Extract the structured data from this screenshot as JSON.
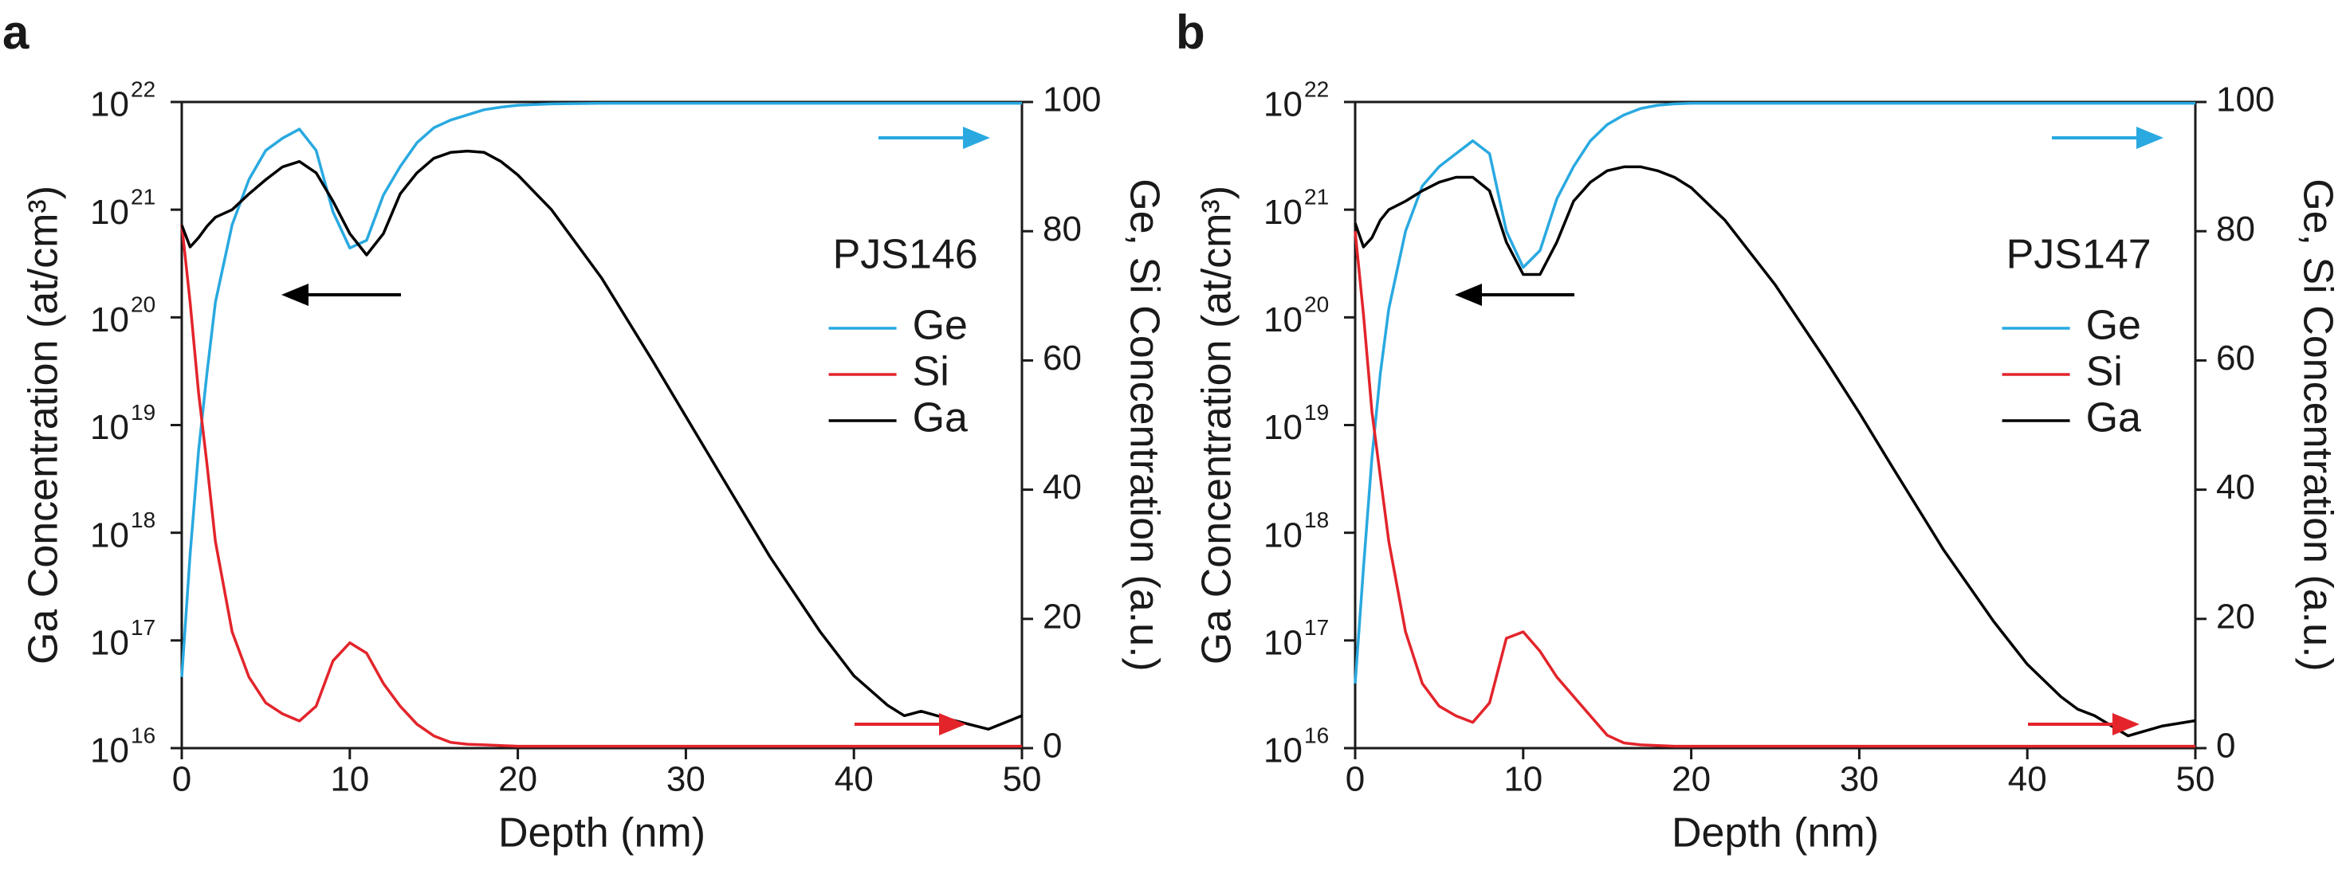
{
  "chart_data": [
    {
      "type": "line",
      "panel": "a",
      "annotation": "PJS146",
      "xlabel": "Depth (nm)",
      "ylabel": "Ga Concentration (at/cm³)",
      "y2label": "Ge, Si Concentration (a.u.)",
      "log_y": true,
      "legend": "right",
      "xlim": [
        0,
        50
      ],
      "xticks": [
        0,
        10,
        20,
        30,
        40,
        50
      ],
      "ylim": [
        1e+16,
        1e+22
      ],
      "yticks": [
        {
          "value": 1e+16,
          "label": "10",
          "exponent": "16"
        },
        {
          "value": 1e+17,
          "label": "10",
          "exponent": "17"
        },
        {
          "value": 1e+18,
          "label": "10",
          "exponent": "18"
        },
        {
          "value": 1e+19,
          "label": "10",
          "exponent": "19"
        },
        {
          "value": 1e+20,
          "label": "10",
          "exponent": "20"
        },
        {
          "value": 1e+21,
          "label": "10",
          "exponent": "21"
        },
        {
          "value": 1e+22,
          "label": "10",
          "exponent": "22"
        }
      ],
      "y2lim": [
        0,
        100
      ],
      "y2ticks": [
        0,
        20,
        40,
        60,
        80,
        100
      ],
      "x": [
        0,
        0.5,
        1,
        1.5,
        2,
        3,
        4,
        5,
        6,
        7,
        8,
        9,
        10,
        11,
        12,
        13,
        14,
        15,
        16,
        17,
        18,
        19,
        20,
        22,
        25,
        28,
        30,
        32,
        35,
        38,
        40,
        42,
        43,
        44,
        46,
        48,
        50
      ],
      "series": [
        {
          "name": "Ge",
          "color": "#29a9e0",
          "axis": "y2",
          "values": [
            11,
            30,
            46,
            58,
            69,
            81,
            88,
            92.5,
            94.4,
            95.8,
            92.5,
            83,
            77.4,
            78.6,
            85.6,
            90,
            93.7,
            96,
            97.2,
            98,
            98.8,
            99.2,
            99.5,
            99.7,
            99.8,
            99.8,
            99.8,
            99.8,
            99.8,
            99.8,
            99.8,
            99.8,
            99.8,
            99.8,
            99.8,
            99.8,
            99.8
          ]
        },
        {
          "name": "Si",
          "color": "#e3242b",
          "axis": "y2",
          "values": [
            81,
            69,
            55,
            44,
            32,
            18,
            11,
            7,
            5.3,
            4.2,
            6.5,
            13.5,
            16.3,
            14.7,
            10,
            6.5,
            3.7,
            1.9,
            0.9,
            0.6,
            0.5,
            0.4,
            0.3,
            0.3,
            0.3,
            0.3,
            0.3,
            0.3,
            0.3,
            0.3,
            0.3,
            0.3,
            0.3,
            0.3,
            0.3,
            0.3,
            0.3
          ]
        },
        {
          "name": "Ga",
          "color": "#000000",
          "values": [
            7.2e+20,
            4.5e+20,
            5.5e+20,
            7e+20,
            8.5e+20,
            1e+21,
            1.4e+21,
            1.9e+21,
            2.5e+21,
            2.8e+21,
            2.2e+21,
            1.2e+21,
            6e+20,
            3.8e+20,
            6e+20,
            1.4e+21,
            2.2e+21,
            3e+21,
            3.4e+21,
            3.5e+21,
            3.4e+21,
            2.8e+21,
            2.1e+21,
            1e+21,
            2.3e+20,
            4e+19,
            1.2e+19,
            3.6e+18,
            6e+17,
            1.2e+17,
            4.7e+16,
            2.5e+16,
            2e+16,
            2.2e+16,
            1.8e+16,
            1.5e+16,
            2e+16
          ]
        }
      ]
    },
    {
      "type": "line",
      "panel": "b",
      "annotation": "PJS147",
      "xlabel": "Depth (nm)",
      "ylabel": "Ga Concentration (at/cm³)",
      "y2label": "Ge, Si Concentration (a.u.)",
      "log_y": true,
      "legend": "right",
      "xlim": [
        0,
        50
      ],
      "xticks": [
        0,
        10,
        20,
        30,
        40,
        50
      ],
      "ylim": [
        1e+16,
        1e+22
      ],
      "yticks": [
        {
          "value": 1e+16,
          "label": "10",
          "exponent": "16"
        },
        {
          "value": 1e+17,
          "label": "10",
          "exponent": "17"
        },
        {
          "value": 1e+18,
          "label": "10",
          "exponent": "18"
        },
        {
          "value": 1e+19,
          "label": "10",
          "exponent": "19"
        },
        {
          "value": 1e+20,
          "label": "10",
          "exponent": "20"
        },
        {
          "value": 1e+21,
          "label": "10",
          "exponent": "21"
        },
        {
          "value": 1e+22,
          "label": "10",
          "exponent": "22"
        }
      ],
      "y2lim": [
        0,
        100
      ],
      "y2ticks": [
        0,
        20,
        40,
        60,
        80,
        100
      ],
      "x": [
        0,
        0.5,
        1,
        1.5,
        2,
        3,
        4,
        5,
        6,
        7,
        8,
        9,
        10,
        11,
        12,
        13,
        14,
        15,
        16,
        17,
        18,
        19,
        20,
        22,
        25,
        28,
        30,
        32,
        35,
        38,
        40,
        42,
        43,
        44,
        46,
        48,
        50
      ],
      "series": [
        {
          "name": "Ge",
          "color": "#29a9e0",
          "axis": "y2",
          "values": [
            10,
            28,
            45,
            58,
            68,
            80,
            87,
            90,
            92,
            94,
            92,
            80,
            74.4,
            77,
            85,
            90,
            94,
            96.5,
            98,
            99,
            99.5,
            99.7,
            99.8,
            99.8,
            99.8,
            99.8,
            99.8,
            99.8,
            99.8,
            99.8,
            99.8,
            99.8,
            99.8,
            99.8,
            99.8,
            99.8,
            99.8
          ]
        },
        {
          "name": "Si",
          "color": "#e3242b",
          "axis": "y2",
          "values": [
            80,
            67,
            52,
            42,
            32,
            18,
            10,
            6.5,
            5,
            4,
            7,
            17,
            18,
            15,
            11,
            8,
            5,
            2,
            0.8,
            0.5,
            0.4,
            0.3,
            0.3,
            0.3,
            0.3,
            0.3,
            0.3,
            0.3,
            0.3,
            0.3,
            0.3,
            0.3,
            0.3,
            0.3,
            0.3,
            0.3,
            0.3
          ]
        },
        {
          "name": "Ga",
          "color": "#000000",
          "values": [
            7.5e+20,
            4.5e+20,
            5.5e+20,
            8e+20,
            1e+21,
            1.2e+21,
            1.5e+21,
            1.8e+21,
            2e+21,
            2e+21,
            1.5e+21,
            5e+20,
            2.5e+20,
            2.5e+20,
            5e+20,
            1.2e+21,
            1.8e+21,
            2.3e+21,
            2.5e+21,
            2.5e+21,
            2.3e+21,
            2e+21,
            1.6e+21,
            8e+20,
            2e+20,
            4e+19,
            1.3e+19,
            4e+18,
            7e+17,
            1.5e+17,
            6e+16,
            3e+16,
            2.3e+16,
            2e+16,
            1.3e+16,
            1.6e+16,
            1.8e+16
          ]
        }
      ]
    }
  ]
}
